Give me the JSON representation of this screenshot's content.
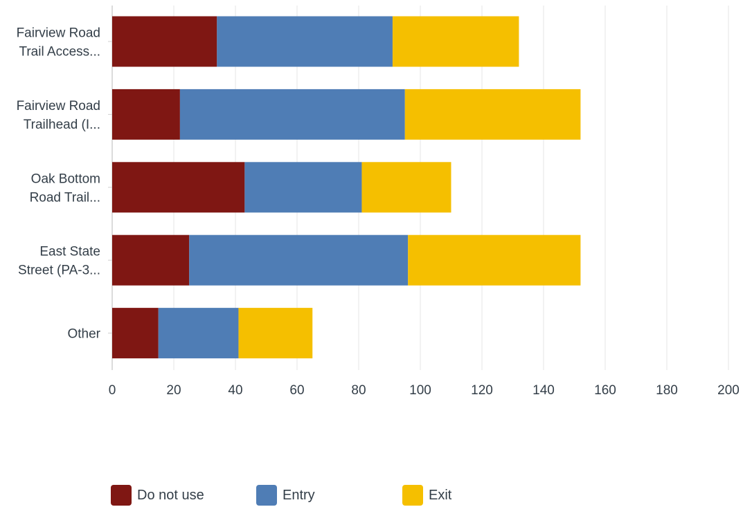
{
  "chart_data": {
    "type": "bar",
    "orientation": "horizontal",
    "stacked": true,
    "categories": [
      [
        "Fairview Road",
        "Trail Access..."
      ],
      [
        "Fairview Road",
        "Trailhead (I..."
      ],
      [
        "Oak Bottom",
        "Road Trail..."
      ],
      [
        "East State",
        "Street (PA-3..."
      ],
      [
        "Other"
      ]
    ],
    "series": [
      {
        "name": "Do not use",
        "color": "#7f1713",
        "values": [
          34,
          22,
          43,
          25,
          15
        ]
      },
      {
        "name": "Entry",
        "color": "#4f7db5",
        "values": [
          57,
          73,
          38,
          71,
          26
        ]
      },
      {
        "name": "Exit",
        "color": "#f5bf00",
        "values": [
          41,
          57,
          29,
          56,
          24
        ]
      }
    ],
    "xlim": [
      0,
      200
    ],
    "xticks": [
      "0",
      "20",
      "40",
      "60",
      "80",
      "100",
      "120",
      "140",
      "160",
      "180",
      "200"
    ],
    "grid": true,
    "legend_position": "bottom",
    "title": "",
    "xlabel": "",
    "ylabel": ""
  }
}
